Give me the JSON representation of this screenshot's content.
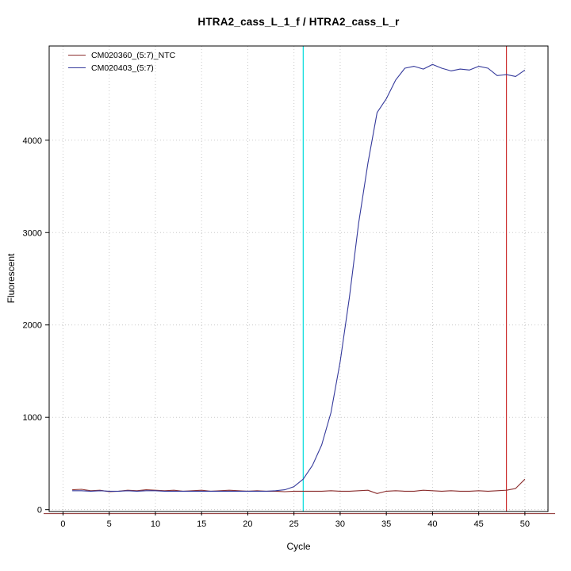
{
  "chart_data": {
    "type": "line",
    "title": "HTRA2_cass_L_1_f / HTRA2_cass_L_r",
    "xlabel": "Cycle",
    "ylabel": "Fluorescent",
    "xlim": [
      -1.5,
      52.5
    ],
    "ylim": [
      -20,
      5020
    ],
    "xticks": [
      0,
      5,
      10,
      15,
      20,
      25,
      30,
      35,
      40,
      45,
      50
    ],
    "yticks": [
      0,
      1000,
      2000,
      3000,
      4000
    ],
    "grid": {
      "show": true,
      "style": "dotted",
      "color": "#c9c9c9"
    },
    "axis_color": "#000000",
    "legend_position": "top-left",
    "cycles": [
      1,
      2,
      3,
      4,
      5,
      6,
      7,
      8,
      9,
      10,
      11,
      12,
      13,
      14,
      15,
      16,
      17,
      18,
      19,
      20,
      21,
      22,
      23,
      24,
      25,
      26,
      27,
      28,
      29,
      30,
      31,
      32,
      33,
      34,
      35,
      36,
      37,
      38,
      39,
      40,
      41,
      42,
      43,
      44,
      45,
      46,
      47,
      48,
      49,
      50
    ],
    "series": [
      {
        "name": "CM020360_(5:7)_NTC",
        "color": "#8b2e2e",
        "values": [
          215,
          220,
          205,
          210,
          195,
          200,
          210,
          205,
          215,
          210,
          205,
          210,
          200,
          205,
          210,
          200,
          205,
          210,
          205,
          200,
          205,
          200,
          200,
          195,
          200,
          200,
          200,
          200,
          205,
          200,
          200,
          205,
          210,
          175,
          200,
          205,
          200,
          200,
          210,
          205,
          200,
          205,
          200,
          200,
          205,
          200,
          205,
          210,
          230,
          330
        ]
      },
      {
        "name": "CM020403_(5:7)",
        "color": "#34399b",
        "values": [
          205,
          205,
          200,
          205,
          200,
          200,
          205,
          200,
          205,
          205,
          200,
          200,
          200,
          200,
          200,
          200,
          200,
          200,
          200,
          200,
          200,
          200,
          205,
          215,
          250,
          330,
          480,
          700,
          1050,
          1600,
          2300,
          3100,
          3750,
          4300,
          4450,
          4650,
          4780,
          4800,
          4770,
          4820,
          4780,
          4750,
          4770,
          4760,
          4800,
          4780,
          4700,
          4710,
          4690,
          4760
        ]
      }
    ],
    "vlines": [
      {
        "name": "threshold-cycle-line",
        "x": 26,
        "color": "#00dcdc"
      },
      {
        "name": "end-marker-line",
        "x": 48,
        "color": "#cd3232"
      }
    ],
    "hlines": [
      {
        "name": "baseline-line",
        "y": -43,
        "color": "#8b2e2e"
      }
    ]
  }
}
